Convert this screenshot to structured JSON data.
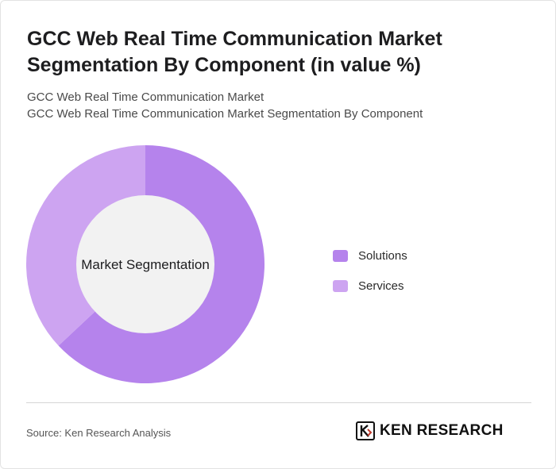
{
  "header": {
    "title": "GCC Web Real Time Communication Market Segmentation By Component (in value %)",
    "subtitle_line1": "GCC Web Real Time Communication Market",
    "subtitle_line2": "GCC Web Real Time Communication Market Segmentation By Component"
  },
  "chart_data": {
    "type": "pie",
    "variant": "donut",
    "center_label": "Market Segmentation",
    "categories": [
      "Solutions",
      "Services"
    ],
    "values": [
      63,
      37
    ],
    "colors": [
      "#b583ec",
      "#cda4f1"
    ],
    "legend_position": "right"
  },
  "footer": {
    "source": "Source: Ken Research Analysis",
    "brand": "KEN RESEARCH",
    "brand_logo_icon": "ken-research-logo-icon"
  }
}
